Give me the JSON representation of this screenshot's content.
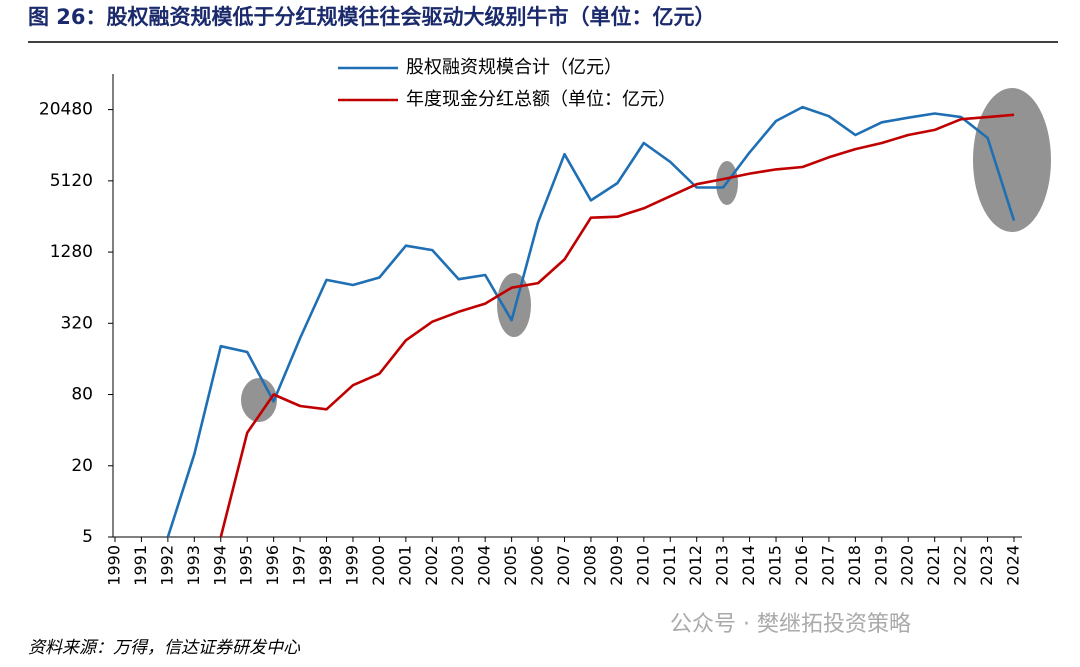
{
  "chart_data": {
    "type": "line",
    "title": "图 26：股权融资规模低于分红规模往往会驱动大级别牛市（单位：亿元）",
    "source": "资料来源：万得，信达证券研发中心",
    "watermark": "公众号 · 樊继拓投资策略",
    "categories": [
      "1990",
      "1991",
      "1992",
      "1993",
      "1994",
      "1995",
      "1996",
      "1997",
      "1998",
      "1999",
      "2000",
      "2001",
      "2002",
      "2003",
      "2004",
      "2005",
      "2006",
      "2007",
      "2008",
      "2009",
      "2010",
      "2011",
      "2012",
      "2013",
      "2014",
      "2015",
      "2016",
      "2017",
      "2018",
      "2019",
      "2020",
      "2021",
      "2022",
      "2023",
      "2024"
    ],
    "series": [
      {
        "name": "股权融资规模合计（亿元）",
        "color": "#1f6fb4",
        "values": [
          null,
          null,
          5,
          25,
          205,
          183,
          70,
          240,
          745,
          675,
          780,
          1450,
          1330,
          755,
          820,
          340,
          2290,
          8600,
          3500,
          4900,
          10700,
          7400,
          4500,
          4500,
          8900,
          16400,
          21500,
          18000,
          12500,
          16000,
          17500,
          19000,
          17700,
          11800,
          2360
        ]
      },
      {
        "name": "年度现金分红总额（单位：亿元）",
        "color": "#c00000",
        "values": [
          null,
          null,
          null,
          null,
          5,
          38,
          80,
          64,
          60,
          96,
          120,
          230,
          330,
          400,
          470,
          640,
          700,
          1110,
          2500,
          2550,
          3000,
          3800,
          4800,
          5300,
          5900,
          6400,
          6700,
          8100,
          9500,
          10700,
          12500,
          13800,
          17000,
          17700,
          18500
        ]
      }
    ],
    "log_scale": true,
    "ylim": [
      5,
      40960
    ],
    "yticks": [
      5,
      20,
      80,
      320,
      1280,
      5120,
      20480
    ],
    "legend": "top"
  }
}
